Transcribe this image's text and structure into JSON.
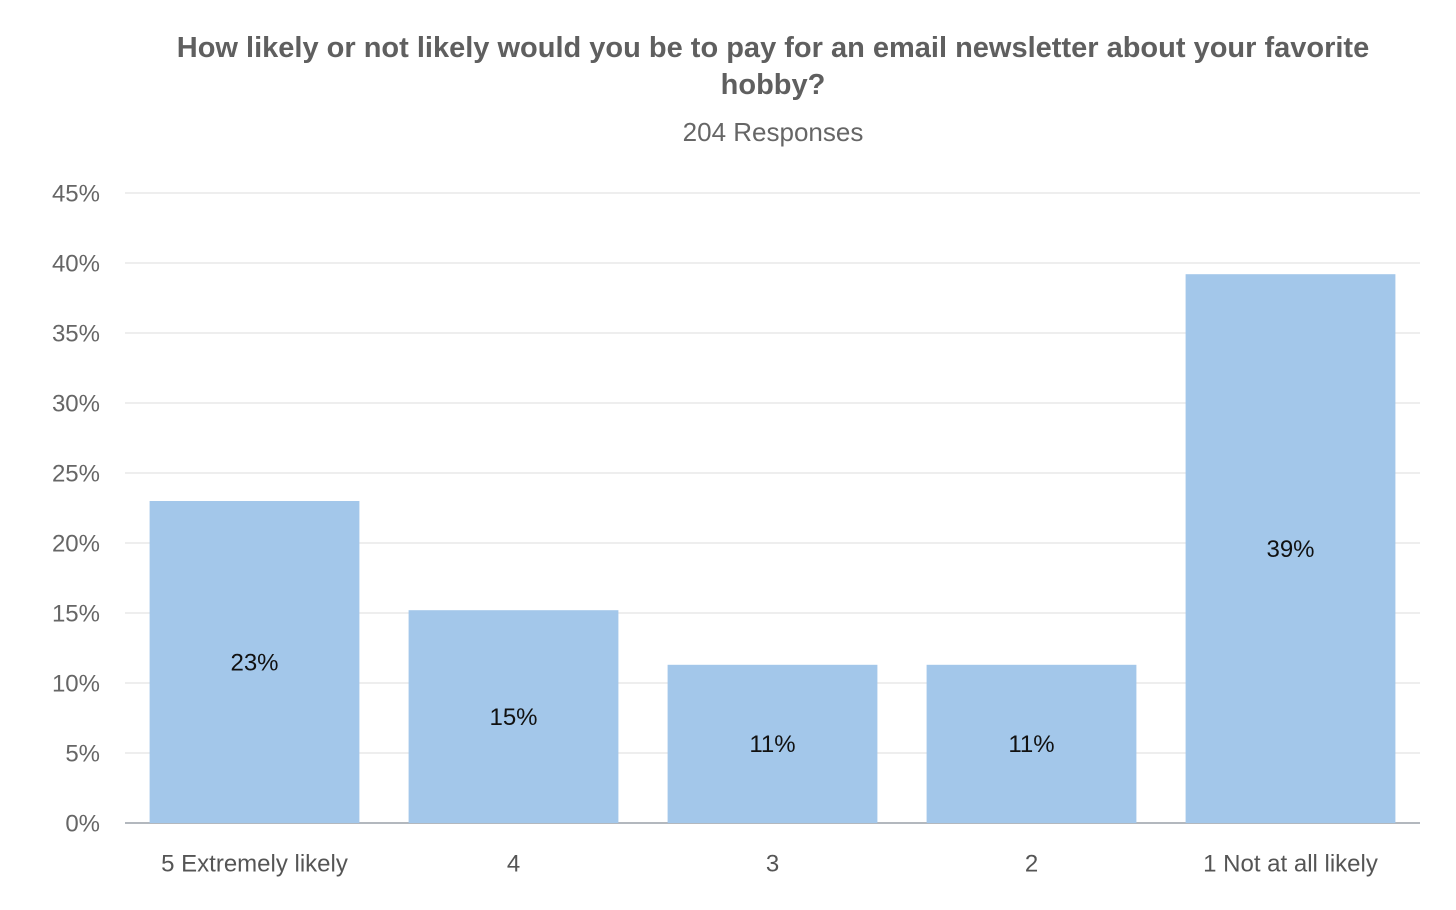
{
  "chart_data": {
    "type": "bar",
    "title": "How likely or not likely would you be to pay for an email newsletter about your favorite hobby?",
    "subtitle": "204 Responses",
    "categories": [
      "5 Extremely likely",
      "4",
      "3",
      "2",
      "1 Not at all likely"
    ],
    "values": [
      23,
      15.2,
      11.3,
      11.3,
      39.2
    ],
    "value_labels": [
      "23%",
      "15%",
      "11%",
      "11%",
      "39%"
    ],
    "color": "#a3c7ea",
    "ylim": [
      0,
      45
    ],
    "yticks": [
      {
        "value": 0,
        "label": "0%"
      },
      {
        "value": 5,
        "label": "5%"
      },
      {
        "value": 10,
        "label": "10%"
      },
      {
        "value": 15,
        "label": "15%"
      },
      {
        "value": 20,
        "label": "20%"
      },
      {
        "value": 25,
        "label": "25%"
      },
      {
        "value": 30,
        "label": "30%"
      },
      {
        "value": 35,
        "label": "35%"
      },
      {
        "value": 40,
        "label": "40%"
      },
      {
        "value": 45,
        "label": "45%"
      }
    ],
    "grid": true
  }
}
